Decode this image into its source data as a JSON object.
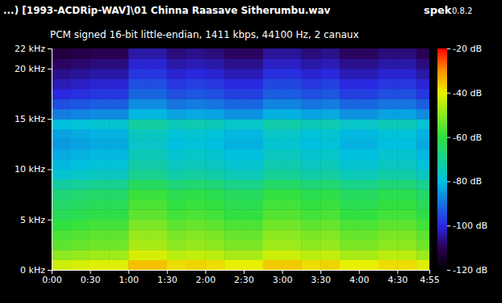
{
  "chart_data": {
    "type": "heatmap",
    "title": "...) [1993-ACDRip-WAV]\\01 Chinna Raasave Sitherumbu.wav",
    "annotations": [
      "spek",
      "0.8.2"
    ],
    "subtitle": "PCM signed 16-bit little-endian, 1411 kbps, 44100 Hz, 2 canaux",
    "xlim": [
      0,
      295
    ],
    "xticks": [
      {
        "value": 0,
        "label": "0:00"
      },
      {
        "value": 30,
        "label": "0:30"
      },
      {
        "value": 60,
        "label": "1:00"
      },
      {
        "value": 90,
        "label": "1:30"
      },
      {
        "value": 120,
        "label": "2:00"
      },
      {
        "value": 150,
        "label": "2:30"
      },
      {
        "value": 180,
        "label": "3:00"
      },
      {
        "value": 210,
        "label": "3:30"
      },
      {
        "value": 240,
        "label": "4:00"
      },
      {
        "value": 270,
        "label": "4:30"
      },
      {
        "value": 295,
        "label": "4:55"
      }
    ],
    "ylim": [
      0,
      22
    ],
    "yticks": [
      {
        "value": 0,
        "label": "0 kHz"
      },
      {
        "value": 5,
        "label": "5 kHz"
      },
      {
        "value": 10,
        "label": "10 kHz"
      },
      {
        "value": 15,
        "label": "15 kHz"
      },
      {
        "value": 20,
        "label": "20 kHz"
      },
      {
        "value": 22,
        "label": "22 kHz"
      }
    ],
    "time_bins": [
      0,
      15,
      30,
      45,
      60,
      75,
      90,
      105,
      120,
      135,
      150,
      165,
      180,
      195,
      210,
      225,
      240,
      255,
      270,
      285,
      295
    ],
    "freq_bins": [
      0,
      1,
      2,
      3,
      4,
      5,
      6,
      7,
      8,
      9,
      10,
      11,
      12,
      13,
      14,
      15,
      16,
      17,
      18,
      19,
      20,
      21,
      22
    ],
    "cells": [
      [
        -43,
        -42,
        -41,
        -41,
        -35,
        -35,
        -38,
        -37,
        -38,
        -40,
        -40,
        -36,
        -36,
        -38,
        -37,
        -40,
        -40,
        -38,
        -38,
        -41
      ],
      [
        -50,
        -49,
        -48,
        -48,
        -42,
        -42,
        -45,
        -44,
        -45,
        -47,
        -47,
        -43,
        -43,
        -45,
        -44,
        -47,
        -47,
        -45,
        -45,
        -48
      ],
      [
        -55,
        -54,
        -53,
        -53,
        -47,
        -47,
        -50,
        -49,
        -50,
        -52,
        -52,
        -48,
        -48,
        -50,
        -49,
        -52,
        -52,
        -50,
        -50,
        -53
      ],
      [
        -57,
        -56,
        -55,
        -55,
        -49,
        -49,
        -52,
        -51,
        -52,
        -54,
        -54,
        -50,
        -50,
        -52,
        -51,
        -54,
        -54,
        -52,
        -52,
        -55
      ],
      [
        -60,
        -59,
        -58,
        -58,
        -52,
        -52,
        -55,
        -54,
        -55,
        -57,
        -57,
        -53,
        -53,
        -55,
        -54,
        -57,
        -57,
        -55,
        -55,
        -58
      ],
      [
        -63,
        -62,
        -61,
        -61,
        -55,
        -55,
        -58,
        -57,
        -58,
        -60,
        -60,
        -56,
        -56,
        -58,
        -57,
        -60,
        -60,
        -58,
        -58,
        -61
      ],
      [
        -65,
        -64,
        -63,
        -63,
        -57,
        -57,
        -60,
        -59,
        -60,
        -62,
        -62,
        -58,
        -58,
        -60,
        -59,
        -62,
        -62,
        -60,
        -60,
        -63
      ],
      [
        -67,
        -66,
        -65,
        -65,
        -59,
        -59,
        -62,
        -61,
        -62,
        -64,
        -64,
        -60,
        -60,
        -62,
        -61,
        -64,
        -64,
        -62,
        -62,
        -65
      ],
      [
        -72,
        -71,
        -70,
        -70,
        -64,
        -64,
        -67,
        -66,
        -67,
        -69,
        -69,
        -65,
        -65,
        -67,
        -66,
        -69,
        -69,
        -67,
        -67,
        -70
      ],
      [
        -78,
        -77,
        -76,
        -76,
        -70,
        -70,
        -73,
        -72,
        -73,
        -75,
        -75,
        -71,
        -71,
        -73,
        -72,
        -75,
        -75,
        -73,
        -73,
        -76
      ],
      [
        -81,
        -80,
        -79,
        -79,
        -73,
        -73,
        -76,
        -75,
        -76,
        -78,
        -78,
        -74,
        -74,
        -76,
        -75,
        -78,
        -78,
        -76,
        -76,
        -79
      ],
      [
        -83,
        -82,
        -81,
        -81,
        -75,
        -75,
        -78,
        -77,
        -78,
        -80,
        -80,
        -76,
        -76,
        -78,
        -77,
        -80,
        -80,
        -78,
        -78,
        -81
      ],
      [
        -85,
        -84,
        -83,
        -83,
        -77,
        -77,
        -80,
        -79,
        -80,
        -82,
        -82,
        -78,
        -78,
        -80,
        -79,
        -82,
        -82,
        -80,
        -80,
        -83
      ],
      [
        -84,
        -83,
        -82,
        -82,
        -76,
        -76,
        -79,
        -78,
        -79,
        -81,
        -81,
        -77,
        -77,
        -79,
        -78,
        -81,
        -81,
        -79,
        -79,
        -82
      ],
      [
        -80,
        -79,
        -78,
        -78,
        -72,
        -72,
        -75,
        -74,
        -75,
        -77,
        -77,
        -73,
        -73,
        -75,
        -74,
        -77,
        -77,
        -75,
        -75,
        -78
      ],
      [
        -89,
        -88,
        -87,
        -87,
        -81,
        -81,
        -84,
        -83,
        -84,
        -86,
        -86,
        -82,
        -82,
        -84,
        -83,
        -86,
        -86,
        -84,
        -84,
        -87
      ],
      [
        -95,
        -94,
        -93,
        -93,
        -87,
        -87,
        -90,
        -89,
        -90,
        -92,
        -92,
        -88,
        -88,
        -90,
        -89,
        -92,
        -92,
        -90,
        -90,
        -93
      ],
      [
        -100,
        -99,
        -98,
        -98,
        -92,
        -92,
        -95,
        -94,
        -95,
        -97,
        -97,
        -93,
        -93,
        -95,
        -94,
        -97,
        -97,
        -95,
        -95,
        -98
      ],
      [
        -103,
        -102,
        -101,
        -101,
        -95,
        -95,
        -98,
        -97,
        -98,
        -100,
        -100,
        -96,
        -96,
        -98,
        -97,
        -100,
        -100,
        -98,
        -98,
        -101
      ],
      [
        -106,
        -105,
        -104,
        -104,
        -98,
        -98,
        -101,
        -100,
        -101,
        -103,
        -103,
        -99,
        -99,
        -101,
        -100,
        -103,
        -103,
        -101,
        -101,
        -104
      ],
      [
        -109,
        -108,
        -107,
        -107,
        -101,
        -101,
        -104,
        -103,
        -104,
        -106,
        -106,
        -102,
        -102,
        -104,
        -103,
        -106,
        -106,
        -104,
        -104,
        -107
      ],
      [
        -112,
        -111,
        -110,
        -110,
        -104,
        -104,
        -107,
        -106,
        -107,
        -109,
        -109,
        -105,
        -105,
        -107,
        -106,
        -109,
        -109,
        -107,
        -107,
        -110
      ]
    ],
    "colorbar": {
      "range": [
        -120,
        -20
      ],
      "ticks": [
        {
          "value": -20,
          "label": "-20 dB"
        },
        {
          "value": -40,
          "label": "-40 dB"
        },
        {
          "value": -60,
          "label": "-60 dB"
        },
        {
          "value": -80,
          "label": "-80 dB"
        },
        {
          "value": -100,
          "label": "-100 dB"
        },
        {
          "value": -120,
          "label": "-120 dB"
        }
      ]
    }
  }
}
